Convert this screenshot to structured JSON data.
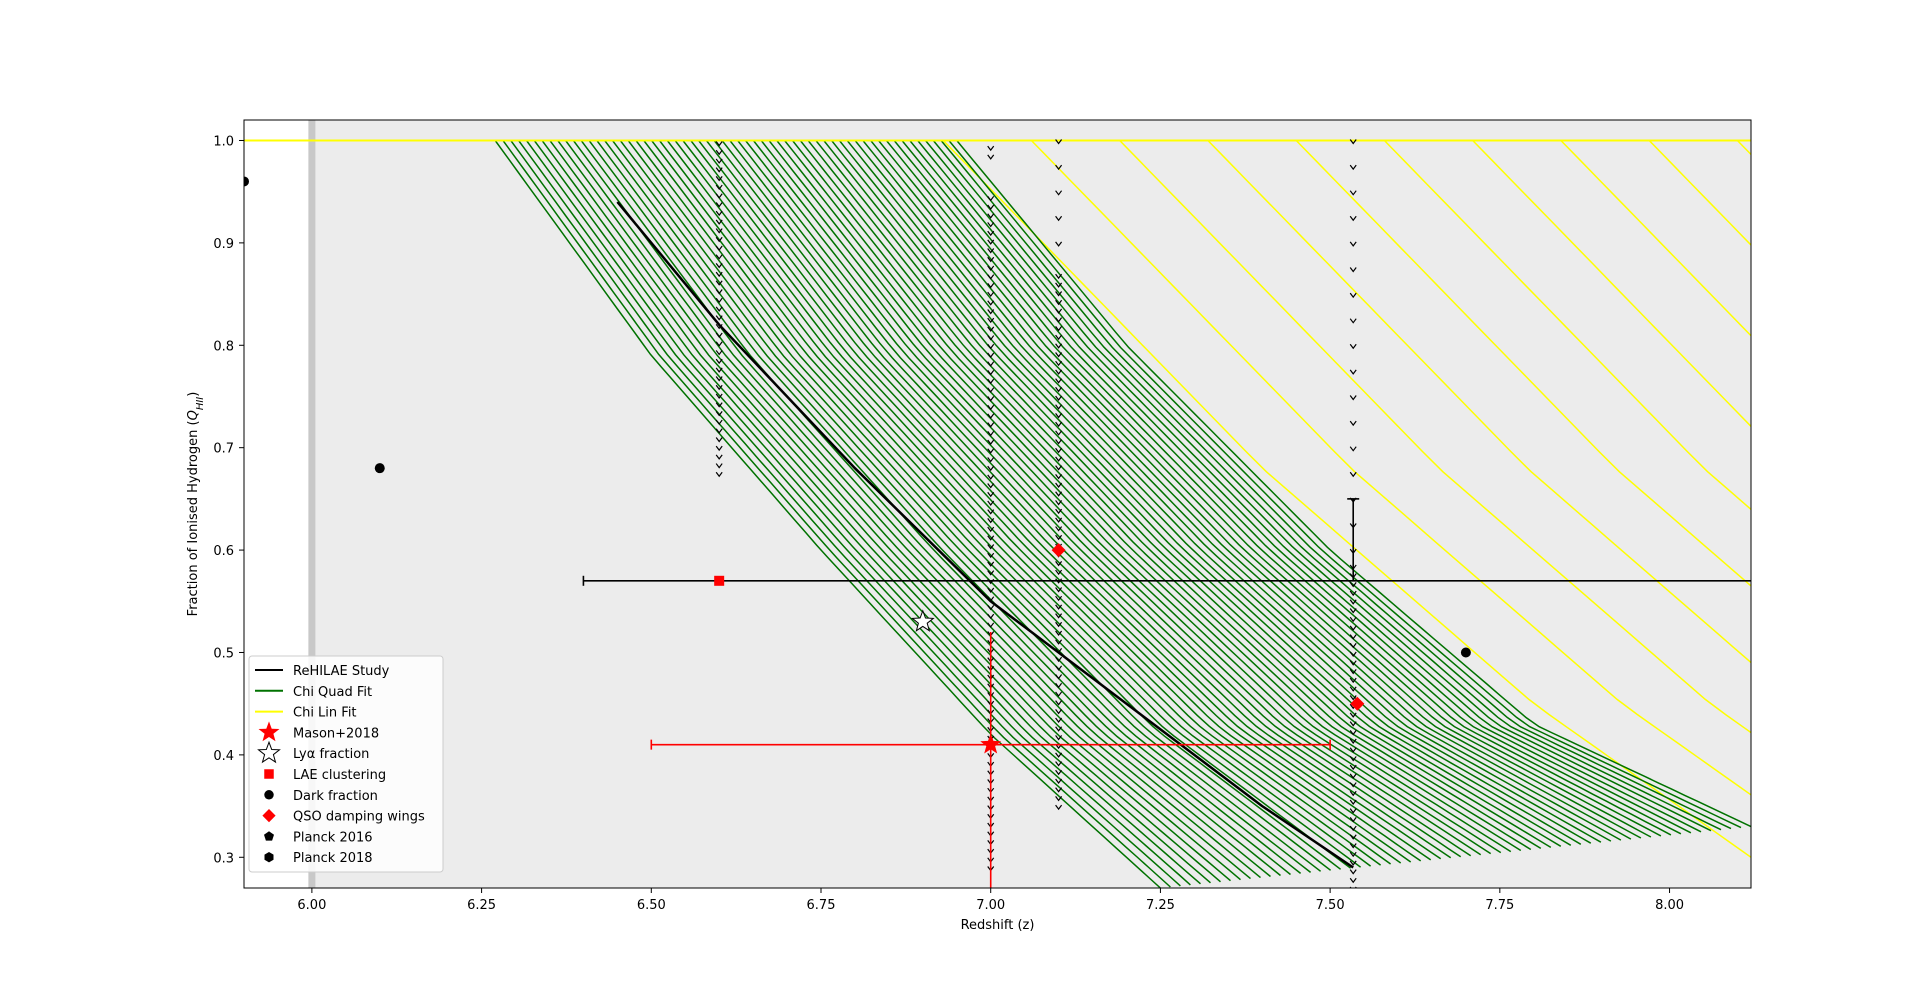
{
  "chart_data": {
    "type": "line",
    "title": "",
    "xlabel": "Redshift (z)",
    "ylabel_parts": {
      "prefix": "Fraction of Ionised Hydrogen (",
      "var": "Q",
      "sub": "HII",
      "suffix": ")"
    },
    "xlim": [
      5.9,
      8.12
    ],
    "ylim": [
      0.27,
      1.02
    ],
    "x_ticks": [
      6.0,
      6.25,
      6.5,
      6.75,
      7.0,
      7.25,
      7.5,
      7.75,
      8.0
    ],
    "x_tick_labels": [
      "6.00",
      "6.25",
      "6.50",
      "6.75",
      "7.00",
      "7.25",
      "7.50",
      "7.75",
      "8.00"
    ],
    "y_ticks": [
      0.3,
      0.4,
      0.5,
      0.6,
      0.7,
      0.8,
      0.9,
      1.0
    ],
    "y_tick_labels": [
      "0.3",
      "0.4",
      "0.5",
      "0.6",
      "0.7",
      "0.8",
      "0.9",
      "1.0"
    ],
    "grid": false,
    "legend_position": "lower-left",
    "background": {
      "shaded_region": {
        "x": [
          6.0,
          8.12
        ],
        "color": "#ececec"
      },
      "boundary_line_x": 6.0
    },
    "series": [
      {
        "name": "ReHILAE Study",
        "kind": "line",
        "color": "#000000",
        "x": [
          6.45,
          6.6,
          6.8,
          7.0,
          7.2,
          7.4,
          7.534
        ],
        "y": [
          0.94,
          0.82,
          0.68,
          0.55,
          0.45,
          0.35,
          0.29
        ]
      },
      {
        "name": "Chi Quad Fit",
        "kind": "band",
        "color": "#007200",
        "lower_edge": {
          "x": [
            6.27,
            6.5,
            6.75,
            7.0,
            7.25
          ],
          "y": [
            1.0,
            0.79,
            0.6,
            0.42,
            0.27
          ]
        },
        "upper_edge": {
          "x": [
            6.95,
            7.2,
            7.5,
            7.8,
            8.12
          ],
          "y": [
            1.0,
            0.8,
            0.6,
            0.43,
            0.33
          ]
        },
        "line_count": 60
      },
      {
        "name": "Chi Lin Fit",
        "kind": "band",
        "color": "#ffff00",
        "lower_edge": {
          "x": [
            6.93,
            7.4,
            7.8,
            8.12
          ],
          "y": [
            1.0,
            0.68,
            0.45,
            0.3
          ]
        },
        "upper_edge": {
          "x": [
            8.12
          ],
          "y": [
            1.0
          ]
        },
        "line_count": 38
      },
      {
        "name": "Mason+2018",
        "kind": "star",
        "color": "#ff0000",
        "points": [
          {
            "x": 7.0,
            "y": 0.41,
            "xerr": [
              0.5,
              0.5
            ],
            "yerr": [
              0.15,
              0.11
            ]
          }
        ]
      },
      {
        "name": "Lyα fraction",
        "kind": "star-open",
        "color": "#000000",
        "points": [
          {
            "x": 6.9,
            "y": 0.53
          }
        ]
      },
      {
        "name": "LAE clustering",
        "kind": "square",
        "color": "#ff0000",
        "points": [
          {
            "x": 6.6,
            "y": 0.57
          }
        ]
      },
      {
        "name": "Dark fraction",
        "kind": "circle",
        "color": "#000000",
        "points": [
          {
            "x": 5.9,
            "y": 0.96
          },
          {
            "x": 6.1,
            "y": 0.68
          },
          {
            "x": 7.7,
            "y": 0.5
          }
        ]
      },
      {
        "name": "QSO damping wings",
        "kind": "diamond",
        "color": "#ff0000",
        "points": [
          {
            "x": 7.1,
            "y": 0.6
          },
          {
            "x": 7.54,
            "y": 0.45
          }
        ]
      },
      {
        "name": "Planck 2016",
        "kind": "pentagon",
        "color": "#000000",
        "points": []
      },
      {
        "name": "Planck 2018",
        "kind": "hexagon",
        "color": "#000000",
        "points": []
      }
    ],
    "errorbars": [
      {
        "x": 6.6,
        "y": 0.57,
        "xerr": [
          0.2,
          1.52
        ],
        "color": "#000000"
      },
      {
        "x": 7.534,
        "y": 0.65,
        "yerr": [
          0.08,
          0.0
        ],
        "color": "#000000"
      }
    ],
    "vertical_marker_columns": [
      {
        "x": 6.6,
        "y_range": [
          0.675,
          1.0
        ],
        "step": 0.0085
      },
      {
        "x": 7.0,
        "y_range": [
          0.29,
          0.95
        ],
        "step": 0.0085
      },
      {
        "x": 7.0,
        "y_range": [
          0.985,
          1.0
        ],
        "step": 0.0085
      },
      {
        "x": 7.1,
        "y_range": [
          0.35,
          0.875
        ],
        "step": 0.0085
      },
      {
        "x": 7.1,
        "y_range": [
          0.9,
          1.0
        ],
        "step": 0.025
      },
      {
        "x": 7.534,
        "y_range": [
          0.27,
          0.59
        ],
        "step": 0.0085
      },
      {
        "x": 7.534,
        "y_range": [
          0.6,
          1.0
        ],
        "step": 0.025
      }
    ]
  }
}
